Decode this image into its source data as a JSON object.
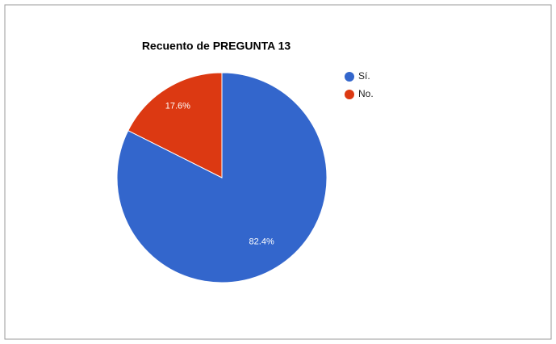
{
  "chart_data": {
    "type": "pie",
    "title": "Recuento de PREGUNTA 13",
    "categories": [
      "Sí.",
      "No."
    ],
    "values": [
      82.4,
      17.6
    ],
    "value_labels": [
      "82.4%",
      "17.6%"
    ],
    "colors": [
      "#3366cc",
      "#dc3912"
    ],
    "legend": "right"
  }
}
